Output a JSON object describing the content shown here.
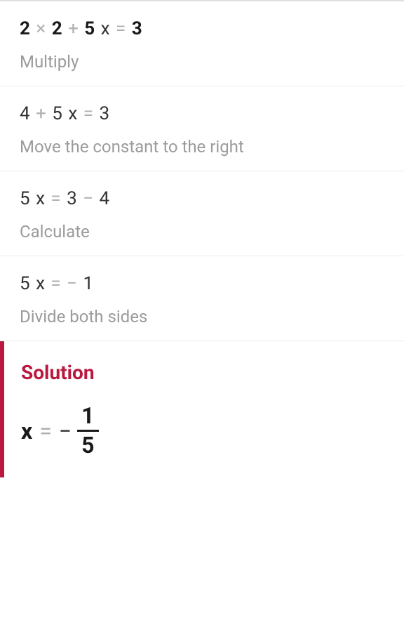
{
  "colors": {
    "text_primary": "#333333",
    "text_bold": "#1a1a1a",
    "text_muted": "#9b9b9b",
    "operator": "#b0b0b0",
    "divider": "#ececec",
    "accent": "#b9193f",
    "background": "#ffffff"
  },
  "typography": {
    "equation_fontsize": 26,
    "instruction_fontsize": 24,
    "solution_title_fontsize": 28,
    "solution_eq_fontsize": 32
  },
  "steps": [
    {
      "equation_parts": [
        {
          "text": "2",
          "bold": true
        },
        {
          "text": " × ",
          "op": true
        },
        {
          "text": "2",
          "bold": true
        },
        {
          "text": " + ",
          "op": true
        },
        {
          "text": "5",
          "bold": true
        },
        {
          "text": " x",
          "bold": false
        },
        {
          "text": " = ",
          "op": true
        },
        {
          "text": "3",
          "bold": true
        }
      ],
      "instruction": "Multiply"
    },
    {
      "equation_parts": [
        {
          "text": "4",
          "bold": false
        },
        {
          "text": " + ",
          "op": true
        },
        {
          "text": "5",
          "bold": false
        },
        {
          "text": " x",
          "bold": false
        },
        {
          "text": " = ",
          "op": true
        },
        {
          "text": "3",
          "bold": false
        }
      ],
      "instruction": "Move the constant to the right"
    },
    {
      "equation_parts": [
        {
          "text": "5",
          "bold": false
        },
        {
          "text": " x",
          "bold": false
        },
        {
          "text": " = ",
          "op": true
        },
        {
          "text": "3",
          "bold": false
        },
        {
          "text": " − ",
          "op": true
        },
        {
          "text": "4",
          "bold": false
        }
      ],
      "instruction": "Calculate"
    },
    {
      "equation_parts": [
        {
          "text": "5",
          "bold": false
        },
        {
          "text": " x",
          "bold": false
        },
        {
          "text": " = ",
          "op": true
        },
        {
          "text": "− ",
          "op": true
        },
        {
          "text": "1",
          "bold": false
        }
      ],
      "instruction": "Divide both sides"
    }
  ],
  "solution": {
    "title": "Solution",
    "variable": "x",
    "equals": "=",
    "minus": "−",
    "numerator": "1",
    "denominator": "5"
  }
}
